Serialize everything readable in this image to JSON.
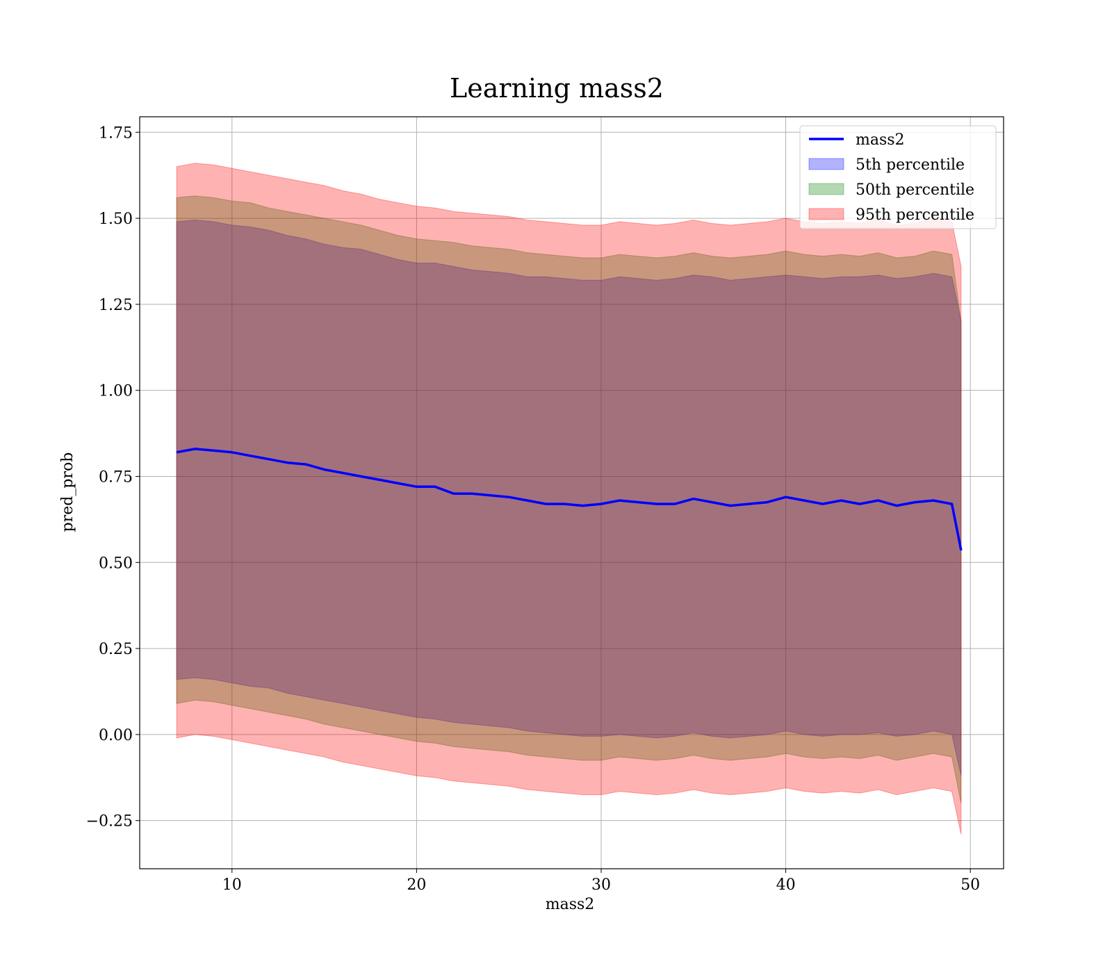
{
  "chart_data": {
    "type": "line",
    "title": "Learning mass2",
    "xlabel": "mass2",
    "ylabel": "pred_prob",
    "xlim": [
      5,
      51.8
    ],
    "ylim": [
      -0.39,
      1.795
    ],
    "x_ticks": [
      10,
      20,
      30,
      40,
      50
    ],
    "x_tick_labels": [
      "10",
      "20",
      "30",
      "40",
      "50"
    ],
    "y_ticks": [
      -0.25,
      0,
      0.25,
      0.5,
      0.75,
      1.0,
      1.25,
      1.5,
      1.75
    ],
    "y_tick_labels": [
      "−0.25",
      "0.00",
      "0.25",
      "0.50",
      "0.75",
      "1.00",
      "1.25",
      "1.50",
      "1.75"
    ],
    "grid": true,
    "legend_position": "top-right",
    "series": [
      {
        "name": "mass2",
        "kind": "line",
        "color": "#0000ff",
        "x": [
          7,
          8,
          9,
          10,
          11,
          12,
          13,
          14,
          15,
          16,
          17,
          18,
          19,
          20,
          21,
          22,
          23,
          24,
          25,
          26,
          27,
          28,
          29,
          30,
          31,
          32,
          33,
          34,
          35,
          36,
          37,
          38,
          39,
          40,
          41,
          42,
          43,
          44,
          45,
          46,
          47,
          48,
          49,
          49.5
        ],
        "y": [
          0.82,
          0.83,
          0.825,
          0.82,
          0.81,
          0.8,
          0.79,
          0.785,
          0.77,
          0.76,
          0.75,
          0.74,
          0.73,
          0.72,
          0.72,
          0.7,
          0.7,
          0.695,
          0.69,
          0.68,
          0.67,
          0.67,
          0.665,
          0.67,
          0.68,
          0.675,
          0.67,
          0.67,
          0.685,
          0.675,
          0.665,
          0.67,
          0.675,
          0.69,
          0.68,
          0.67,
          0.68,
          0.67,
          0.68,
          0.665,
          0.675,
          0.68,
          0.67,
          0.535
        ]
      },
      {
        "name": "5th percentile",
        "kind": "band",
        "color": "#0000ff",
        "x": [
          7,
          8,
          9,
          10,
          11,
          12,
          13,
          14,
          15,
          16,
          17,
          18,
          19,
          20,
          21,
          22,
          23,
          24,
          25,
          26,
          27,
          28,
          29,
          30,
          31,
          32,
          33,
          34,
          35,
          36,
          37,
          38,
          39,
          40,
          41,
          42,
          43,
          44,
          45,
          46,
          47,
          48,
          49,
          49.5
        ],
        "upper": [
          1.49,
          1.495,
          1.49,
          1.48,
          1.475,
          1.465,
          1.45,
          1.44,
          1.425,
          1.415,
          1.41,
          1.395,
          1.38,
          1.37,
          1.37,
          1.36,
          1.35,
          1.345,
          1.34,
          1.33,
          1.33,
          1.325,
          1.32,
          1.32,
          1.33,
          1.325,
          1.32,
          1.325,
          1.335,
          1.33,
          1.32,
          1.325,
          1.33,
          1.335,
          1.33,
          1.325,
          1.33,
          1.33,
          1.335,
          1.325,
          1.33,
          1.34,
          1.33,
          1.2
        ],
        "lower": [
          0.16,
          0.165,
          0.16,
          0.15,
          0.14,
          0.135,
          0.12,
          0.11,
          0.1,
          0.09,
          0.08,
          0.07,
          0.06,
          0.05,
          0.045,
          0.035,
          0.03,
          0.025,
          0.02,
          0.01,
          0.005,
          0.0,
          -0.005,
          -0.005,
          0.0,
          -0.005,
          -0.01,
          -0.005,
          0.005,
          -0.005,
          -0.01,
          -0.005,
          0.0,
          0.01,
          0.0,
          -0.005,
          0.0,
          0.0,
          0.005,
          -0.005,
          0.0,
          0.01,
          0.0,
          -0.12
        ]
      },
      {
        "name": "50th percentile",
        "kind": "band",
        "color": "#008000",
        "x": [
          7,
          8,
          9,
          10,
          11,
          12,
          13,
          14,
          15,
          16,
          17,
          18,
          19,
          20,
          21,
          22,
          23,
          24,
          25,
          26,
          27,
          28,
          29,
          30,
          31,
          32,
          33,
          34,
          35,
          36,
          37,
          38,
          39,
          40,
          41,
          42,
          43,
          44,
          45,
          46,
          47,
          48,
          49,
          49.5
        ],
        "upper": [
          1.56,
          1.565,
          1.56,
          1.55,
          1.545,
          1.53,
          1.52,
          1.51,
          1.5,
          1.49,
          1.48,
          1.465,
          1.45,
          1.44,
          1.435,
          1.43,
          1.42,
          1.415,
          1.41,
          1.4,
          1.395,
          1.39,
          1.385,
          1.385,
          1.395,
          1.39,
          1.385,
          1.39,
          1.4,
          1.39,
          1.385,
          1.39,
          1.395,
          1.405,
          1.395,
          1.39,
          1.395,
          1.39,
          1.4,
          1.385,
          1.39,
          1.405,
          1.395,
          1.2
        ],
        "lower": [
          0.09,
          0.1,
          0.095,
          0.085,
          0.075,
          0.065,
          0.055,
          0.045,
          0.03,
          0.02,
          0.01,
          0.0,
          -0.01,
          -0.02,
          -0.025,
          -0.035,
          -0.04,
          -0.045,
          -0.05,
          -0.06,
          -0.065,
          -0.07,
          -0.075,
          -0.075,
          -0.065,
          -0.07,
          -0.075,
          -0.07,
          -0.06,
          -0.07,
          -0.075,
          -0.07,
          -0.065,
          -0.055,
          -0.065,
          -0.07,
          -0.065,
          -0.07,
          -0.06,
          -0.075,
          -0.065,
          -0.055,
          -0.065,
          -0.2
        ]
      },
      {
        "name": "95th percentile",
        "kind": "band",
        "color": "#ff0000",
        "x": [
          7,
          8,
          9,
          10,
          11,
          12,
          13,
          14,
          15,
          16,
          17,
          18,
          19,
          20,
          21,
          22,
          23,
          24,
          25,
          26,
          27,
          28,
          29,
          30,
          31,
          32,
          33,
          34,
          35,
          36,
          37,
          38,
          39,
          40,
          41,
          42,
          43,
          44,
          45,
          46,
          47,
          48,
          49,
          49.5
        ],
        "upper": [
          1.65,
          1.66,
          1.655,
          1.645,
          1.635,
          1.625,
          1.615,
          1.605,
          1.595,
          1.58,
          1.57,
          1.555,
          1.545,
          1.535,
          1.53,
          1.52,
          1.515,
          1.51,
          1.505,
          1.495,
          1.49,
          1.485,
          1.48,
          1.48,
          1.49,
          1.485,
          1.48,
          1.485,
          1.495,
          1.485,
          1.48,
          1.485,
          1.49,
          1.5,
          1.49,
          1.485,
          1.49,
          1.485,
          1.495,
          1.48,
          1.485,
          1.5,
          1.49,
          1.36
        ],
        "lower": [
          -0.01,
          0.0,
          -0.005,
          -0.015,
          -0.025,
          -0.035,
          -0.045,
          -0.055,
          -0.065,
          -0.08,
          -0.09,
          -0.1,
          -0.11,
          -0.12,
          -0.125,
          -0.135,
          -0.14,
          -0.145,
          -0.15,
          -0.16,
          -0.165,
          -0.17,
          -0.175,
          -0.175,
          -0.165,
          -0.17,
          -0.175,
          -0.17,
          -0.16,
          -0.17,
          -0.175,
          -0.17,
          -0.165,
          -0.155,
          -0.165,
          -0.17,
          -0.165,
          -0.17,
          -0.16,
          -0.175,
          -0.165,
          -0.155,
          -0.165,
          -0.29
        ]
      }
    ]
  }
}
